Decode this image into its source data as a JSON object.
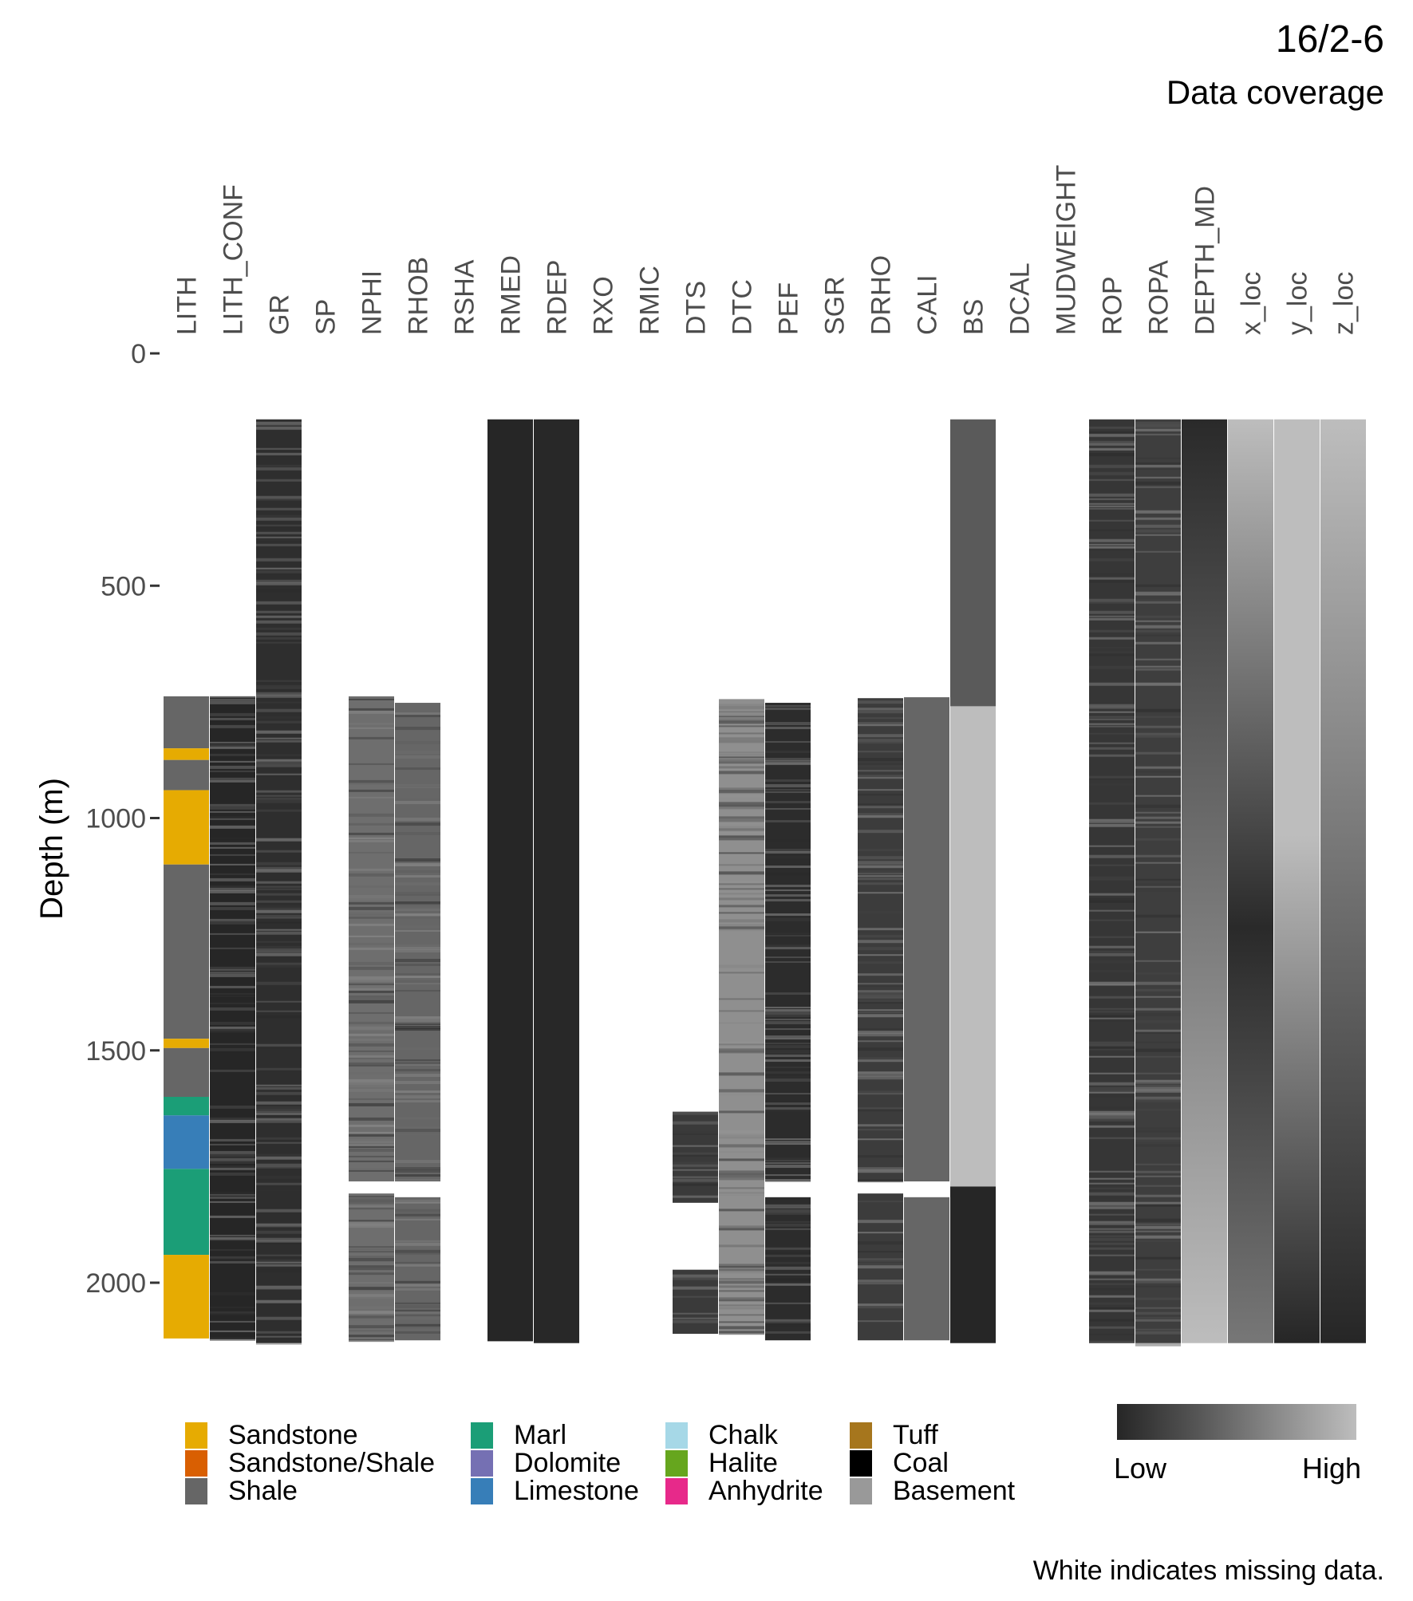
{
  "header": {
    "title": "16/2-6",
    "subtitle": "Data coverage"
  },
  "caption": "White indicates missing data.",
  "colors": {
    "present_dark": "#262626",
    "present_mid": "#5a5a5a",
    "present_light": "#bdbdbd",
    "missing": "#ffffff"
  },
  "chart_data": {
    "type": "heatmap",
    "ylabel": "Depth (m)",
    "y_reversed": true,
    "ylim": [
      0,
      2130
    ],
    "y_ticks": [
      0,
      500,
      1000,
      1500,
      2000
    ],
    "y_tick_labels": [
      "0",
      "500",
      "1000",
      "1500",
      "2000"
    ],
    "columns": [
      "LITH",
      "LITH_CONF",
      "GR",
      "SP",
      "NPHI",
      "RHOB",
      "RSHA",
      "RMED",
      "RDEP",
      "RXO",
      "RMIC",
      "DTS",
      "DTC",
      "PEF",
      "SGR",
      "DRHO",
      "CALI",
      "BS",
      "DCAL",
      "MUDWEIGHT",
      "ROP",
      "ROPA",
      "DEPTH_MD",
      "x_loc",
      "y_loc",
      "z_loc"
    ],
    "coverage": [
      {
        "column": "LITH",
        "intervals": [
          [
            738,
            2122
          ]
        ]
      },
      {
        "column": "LITH_CONF",
        "intervals": [
          [
            738,
            2122
          ]
        ]
      },
      {
        "column": "GR",
        "intervals": [
          [
            142,
            2130
          ]
        ]
      },
      {
        "column": "SP",
        "intervals": []
      },
      {
        "column": "NPHI",
        "intervals": [
          [
            738,
            1782
          ],
          [
            1808,
            2124
          ]
        ]
      },
      {
        "column": "RHOB",
        "intervals": [
          [
            752,
            1782
          ],
          [
            1816,
            2124
          ]
        ]
      },
      {
        "column": "RSHA",
        "intervals": []
      },
      {
        "column": "RMED",
        "intervals": [
          [
            142,
            2126
          ]
        ]
      },
      {
        "column": "RDEP",
        "intervals": [
          [
            142,
            2130
          ]
        ]
      },
      {
        "column": "RXO",
        "intervals": []
      },
      {
        "column": "RMIC",
        "intervals": []
      },
      {
        "column": "DTS",
        "intervals": [
          [
            1632,
            1828
          ],
          [
            1972,
            2110
          ]
        ]
      },
      {
        "column": "DTC",
        "intervals": [
          [
            744,
            2112
          ]
        ]
      },
      {
        "column": "PEF",
        "intervals": [
          [
            752,
            1782
          ],
          [
            1816,
            2124
          ]
        ]
      },
      {
        "column": "SGR",
        "intervals": []
      },
      {
        "column": "DRHO",
        "intervals": [
          [
            742,
            1782
          ],
          [
            1808,
            2124
          ]
        ]
      },
      {
        "column": "CALI",
        "intervals": [
          [
            740,
            1782
          ],
          [
            1816,
            2124
          ]
        ]
      },
      {
        "column": "BS",
        "intervals": [
          [
            142,
            2130
          ]
        ]
      },
      {
        "column": "DCAL",
        "intervals": []
      },
      {
        "column": "MUDWEIGHT",
        "intervals": []
      },
      {
        "column": "ROP",
        "intervals": [
          [
            142,
            2130
          ]
        ]
      },
      {
        "column": "ROPA",
        "intervals": [
          [
            142,
            2130
          ]
        ]
      },
      {
        "column": "DEPTH_MD",
        "intervals": [
          [
            142,
            2130
          ]
        ]
      },
      {
        "column": "x_loc",
        "intervals": [
          [
            142,
            2130
          ]
        ]
      },
      {
        "column": "y_loc",
        "intervals": [
          [
            142,
            2130
          ]
        ]
      },
      {
        "column": "z_loc",
        "intervals": [
          [
            142,
            2130
          ]
        ]
      }
    ],
    "lith_intervals": [
      {
        "from": 738,
        "to": 850,
        "lith": "Shale"
      },
      {
        "from": 850,
        "to": 875,
        "lith": "Sandstone"
      },
      {
        "from": 875,
        "to": 940,
        "lith": "Shale"
      },
      {
        "from": 940,
        "to": 1100,
        "lith": "Sandstone"
      },
      {
        "from": 1100,
        "to": 1475,
        "lith": "Shale"
      },
      {
        "from": 1475,
        "to": 1495,
        "lith": "Sandstone"
      },
      {
        "from": 1495,
        "to": 1600,
        "lith": "Shale"
      },
      {
        "from": 1600,
        "to": 1640,
        "lith": "Marl"
      },
      {
        "from": 1640,
        "to": 1755,
        "lith": "Limestone"
      },
      {
        "from": 1755,
        "to": 1940,
        "lith": "Marl"
      },
      {
        "from": 1940,
        "to": 2120,
        "lith": "Sandstone"
      }
    ],
    "lith_legend": [
      {
        "label": "Sandstone",
        "color": "#E6AB02"
      },
      {
        "label": "Sandstone/Shale",
        "color": "#D95F02"
      },
      {
        "label": "Shale",
        "color": "#666666"
      },
      {
        "label": "Marl",
        "color": "#1B9E77"
      },
      {
        "label": "Dolomite",
        "color": "#7570B3"
      },
      {
        "label": "Limestone",
        "color": "#377EB8"
      },
      {
        "label": "Chalk",
        "color": "#A6D8E7"
      },
      {
        "label": "Halite",
        "color": "#66A61E"
      },
      {
        "label": "Anhydrite",
        "color": "#E7298A"
      },
      {
        "label": "Tuff",
        "color": "#A6761D"
      },
      {
        "label": "Coal",
        "color": "#000000"
      },
      {
        "label": "Basement",
        "color": "#999999"
      }
    ],
    "value_legend": {
      "low": "Low",
      "high": "High"
    }
  }
}
